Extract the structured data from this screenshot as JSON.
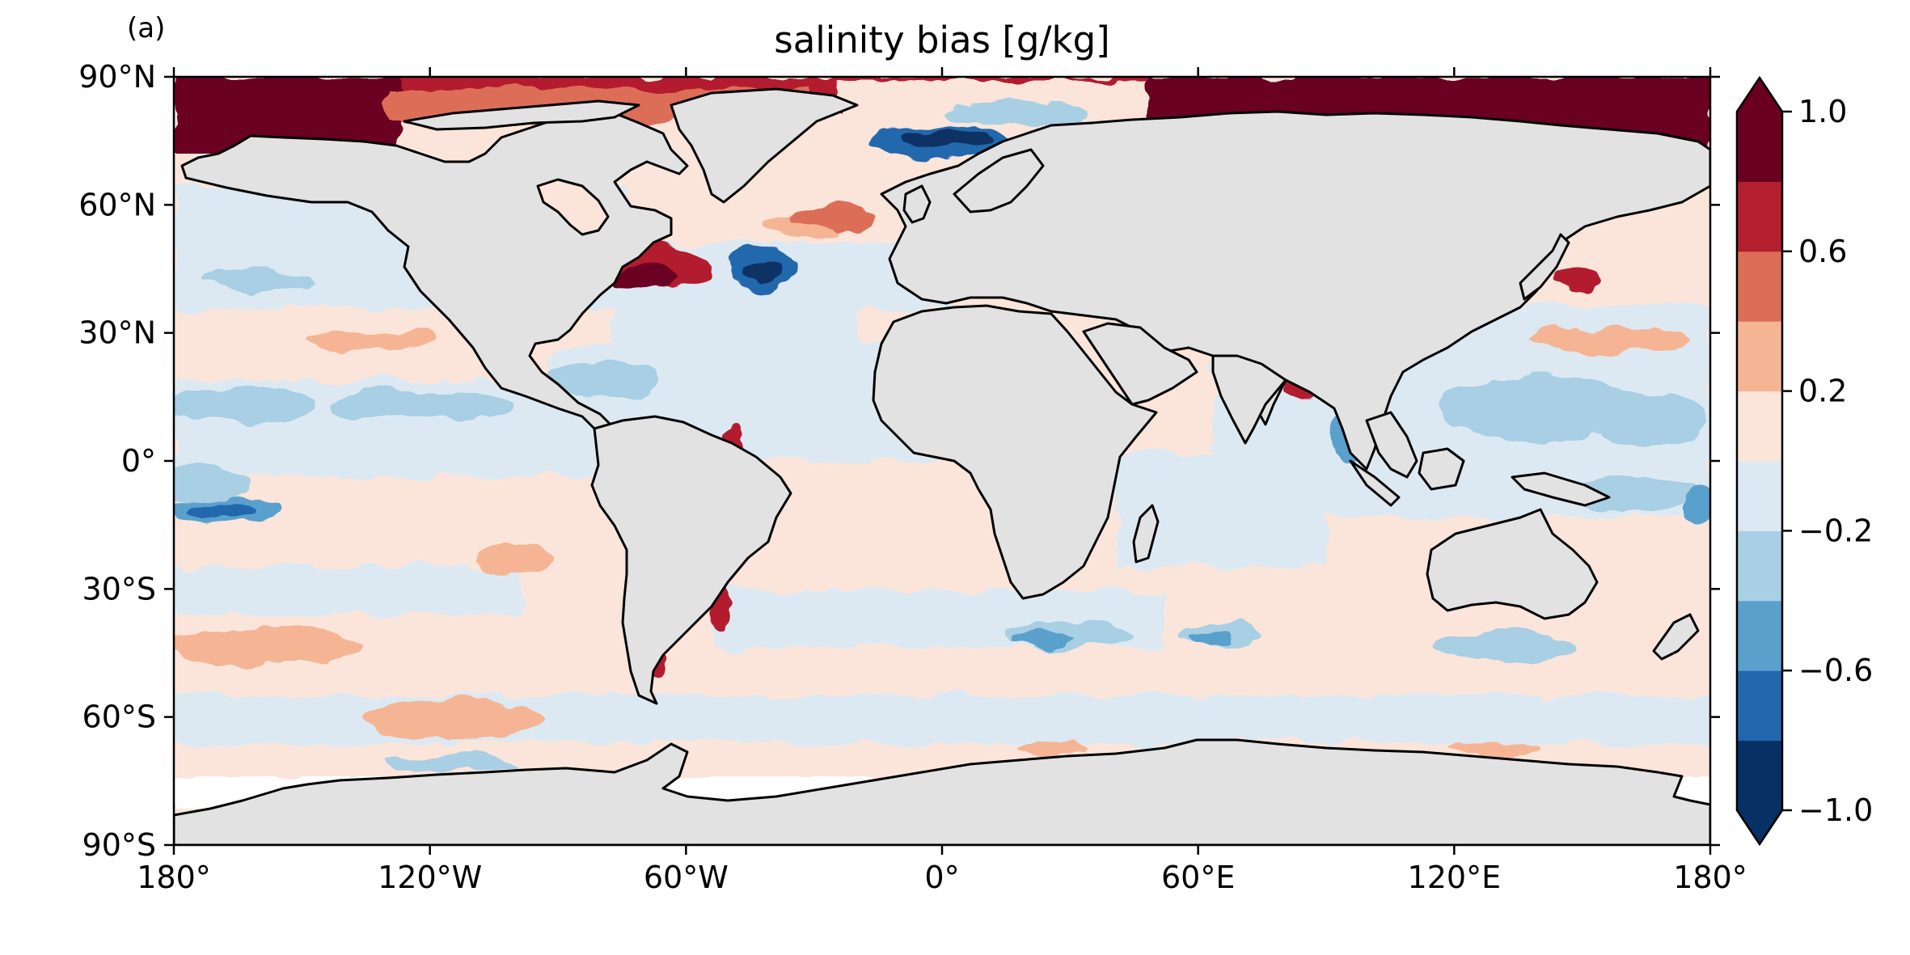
{
  "panel_label": "(a)",
  "title": "salinity bias [g/kg]",
  "map": {
    "projection": "PlateCarree",
    "extent": {
      "lon": [
        -180,
        180
      ],
      "lat": [
        -90,
        90
      ]
    },
    "land_color": "#e2e2e2",
    "coastline_color": "#000000"
  },
  "axes": {
    "x_ticks": [
      {
        "value": -180,
        "label": "180°"
      },
      {
        "value": -120,
        "label": "120°W"
      },
      {
        "value": -60,
        "label": "60°W"
      },
      {
        "value": 0,
        "label": "0°"
      },
      {
        "value": 60,
        "label": "60°E"
      },
      {
        "value": 120,
        "label": "120°E"
      },
      {
        "value": 180,
        "label": "180°"
      }
    ],
    "y_ticks": [
      {
        "value": 90,
        "label": "90°N"
      },
      {
        "value": 60,
        "label": "60°N"
      },
      {
        "value": 30,
        "label": "30°N"
      },
      {
        "value": 0,
        "label": "0°"
      },
      {
        "value": -30,
        "label": "30°S"
      },
      {
        "value": -60,
        "label": "60°S"
      },
      {
        "value": -90,
        "label": "90°S"
      }
    ]
  },
  "colorbar": {
    "extend": "both",
    "boundaries": [
      -1.0,
      -0.8,
      -0.6,
      -0.4,
      -0.2,
      0.0,
      0.2,
      0.4,
      0.6,
      0.8,
      1.0
    ],
    "colors": [
      "#073064",
      "#2067ad",
      "#5aa0cc",
      "#a8cfe4",
      "#dde9f2",
      "#fbe5da",
      "#f5b594",
      "#dc6e58",
      "#b31f2d",
      "#6a0020"
    ],
    "ticks": [
      {
        "value": 1.0,
        "label": "1.0"
      },
      {
        "value": 0.6,
        "label": "0.6"
      },
      {
        "value": 0.2,
        "label": "0.2"
      },
      {
        "value": -0.2,
        "label": "−0.2"
      },
      {
        "value": -0.6,
        "label": "−0.6"
      },
      {
        "value": -1.0,
        "label": "−1.0"
      }
    ]
  }
}
